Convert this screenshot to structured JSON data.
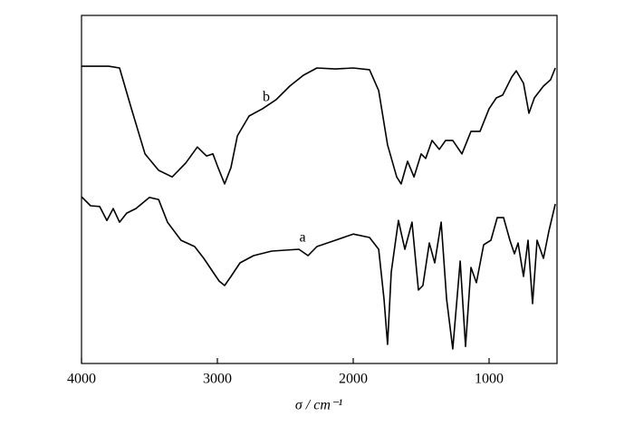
{
  "chart_data": {
    "type": "line",
    "xlabel": "σ / cm⁻¹",
    "xlim": [
      4000,
      500
    ],
    "ylim": [
      0,
      100
    ],
    "xticks": [
      4000,
      3000,
      2000,
      1000
    ],
    "grid": false,
    "series": [
      {
        "name": "b",
        "color": "#000000",
        "x": [
          4000,
          3800,
          3720,
          3633,
          3533,
          3433,
          3333,
          3233,
          3147,
          3080,
          3033,
          3000,
          2947,
          2900,
          2853,
          2767,
          2667,
          2567,
          2467,
          2367,
          2267,
          2133,
          2000,
          1880,
          1813,
          1747,
          1680,
          1647,
          1600,
          1553,
          1500,
          1467,
          1420,
          1367,
          1320,
          1267,
          1200,
          1133,
          1067,
          1000,
          947,
          900,
          833,
          800,
          747,
          707,
          667,
          600,
          547,
          513
        ],
        "values": [
          85.4,
          85.4,
          84.9,
          73.2,
          60.2,
          55.5,
          53.6,
          57.6,
          62.2,
          59.6,
          60.2,
          56.8,
          51.6,
          56.3,
          65.4,
          71.1,
          73.2,
          75.8,
          79.7,
          82.8,
          84.9,
          84.6,
          84.9,
          84.4,
          78.4,
          62.8,
          53.6,
          51.6,
          58.1,
          53.6,
          60.2,
          58.9,
          64.1,
          61.5,
          64.1,
          64.1,
          60.2,
          66.7,
          66.7,
          73.2,
          76.3,
          77.1,
          82.3,
          84.1,
          80.5,
          71.9,
          76.3,
          79.7,
          81.5,
          84.9
        ]
      },
      {
        "name": "a",
        "color": "#000000",
        "x": [
          4000,
          3933,
          3867,
          3813,
          3767,
          3720,
          3667,
          3600,
          3500,
          3433,
          3367,
          3267,
          3167,
          3100,
          3033,
          2987,
          2947,
          2900,
          2833,
          2733,
          2600,
          2400,
          2333,
          2267,
          2133,
          2000,
          1880,
          1813,
          1773,
          1747,
          1720,
          1667,
          1620,
          1567,
          1520,
          1487,
          1440,
          1400,
          1353,
          1313,
          1267,
          1213,
          1173,
          1133,
          1093,
          1040,
          987,
          940,
          893,
          847,
          813,
          787,
          747,
          713,
          680,
          647,
          600,
          560,
          513
        ],
        "values": [
          47.9,
          45.3,
          45.1,
          41.1,
          44.5,
          40.6,
          43.2,
          44.5,
          47.7,
          47.1,
          40.6,
          35.4,
          33.6,
          30.2,
          26.3,
          23.7,
          22.4,
          25.0,
          28.9,
          31.0,
          32.3,
          32.8,
          31.0,
          33.6,
          35.4,
          37.2,
          36.2,
          32.8,
          18.5,
          5.5,
          26.3,
          41.1,
          32.8,
          40.6,
          21.1,
          22.4,
          34.6,
          28.9,
          40.6,
          18.5,
          4.2,
          29.4,
          4.9,
          27.6,
          23.2,
          34.1,
          35.4,
          41.9,
          41.9,
          35.4,
          31.5,
          34.6,
          25.0,
          35.4,
          17.2,
          35.4,
          30.2,
          38.0,
          45.8
        ]
      }
    ]
  }
}
